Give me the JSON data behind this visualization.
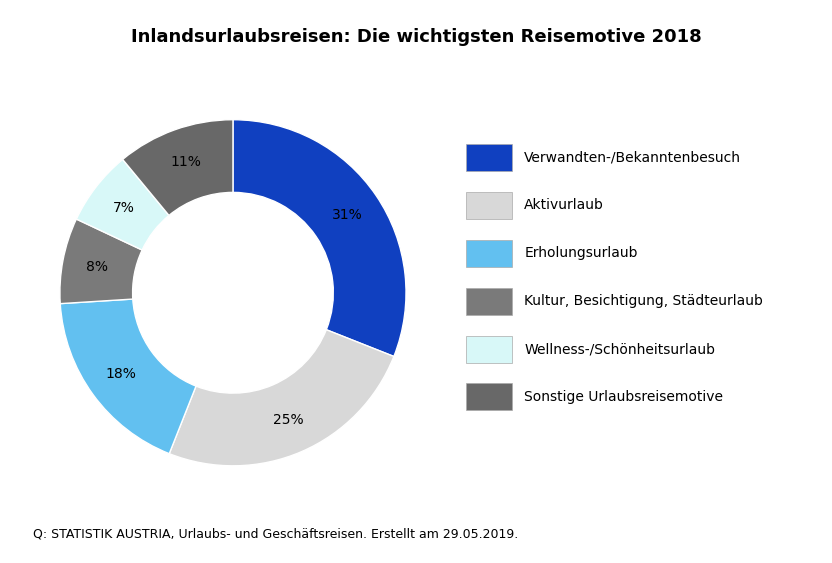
{
  "title": "Inlandsurlaubsreisen: Die wichtigsten Reisemotive 2018",
  "slices": [
    31,
    25,
    18,
    8,
    7,
    11
  ],
  "labels": [
    "31%",
    "25%",
    "18%",
    "8%",
    "7%",
    "11%"
  ],
  "colors": [
    "#1040c0",
    "#d8d8d8",
    "#62c0f0",
    "#7a7a7a",
    "#d8f8f8",
    "#686868"
  ],
  "legend_labels": [
    "Verwandten-/Bekanntenbesuch",
    "Aktivurlaub",
    "Erholungsurlaub",
    "Kultur, Besichtigung, Städteurlaub",
    "Wellness-/Schönheitsurlaub",
    "Sonstige Urlaubsreisemotive"
  ],
  "source_text": "Q: STATISTIK AUSTRIA, Urlaubs- und Geschäftsreisen. Erstellt am 29.05.2019.",
  "title_fontsize": 13,
  "legend_fontsize": 10,
  "label_fontsize": 10,
  "source_fontsize": 9,
  "background_color": "#ffffff",
  "wedge_edge_color": "#ffffff",
  "donut_width": 0.42
}
